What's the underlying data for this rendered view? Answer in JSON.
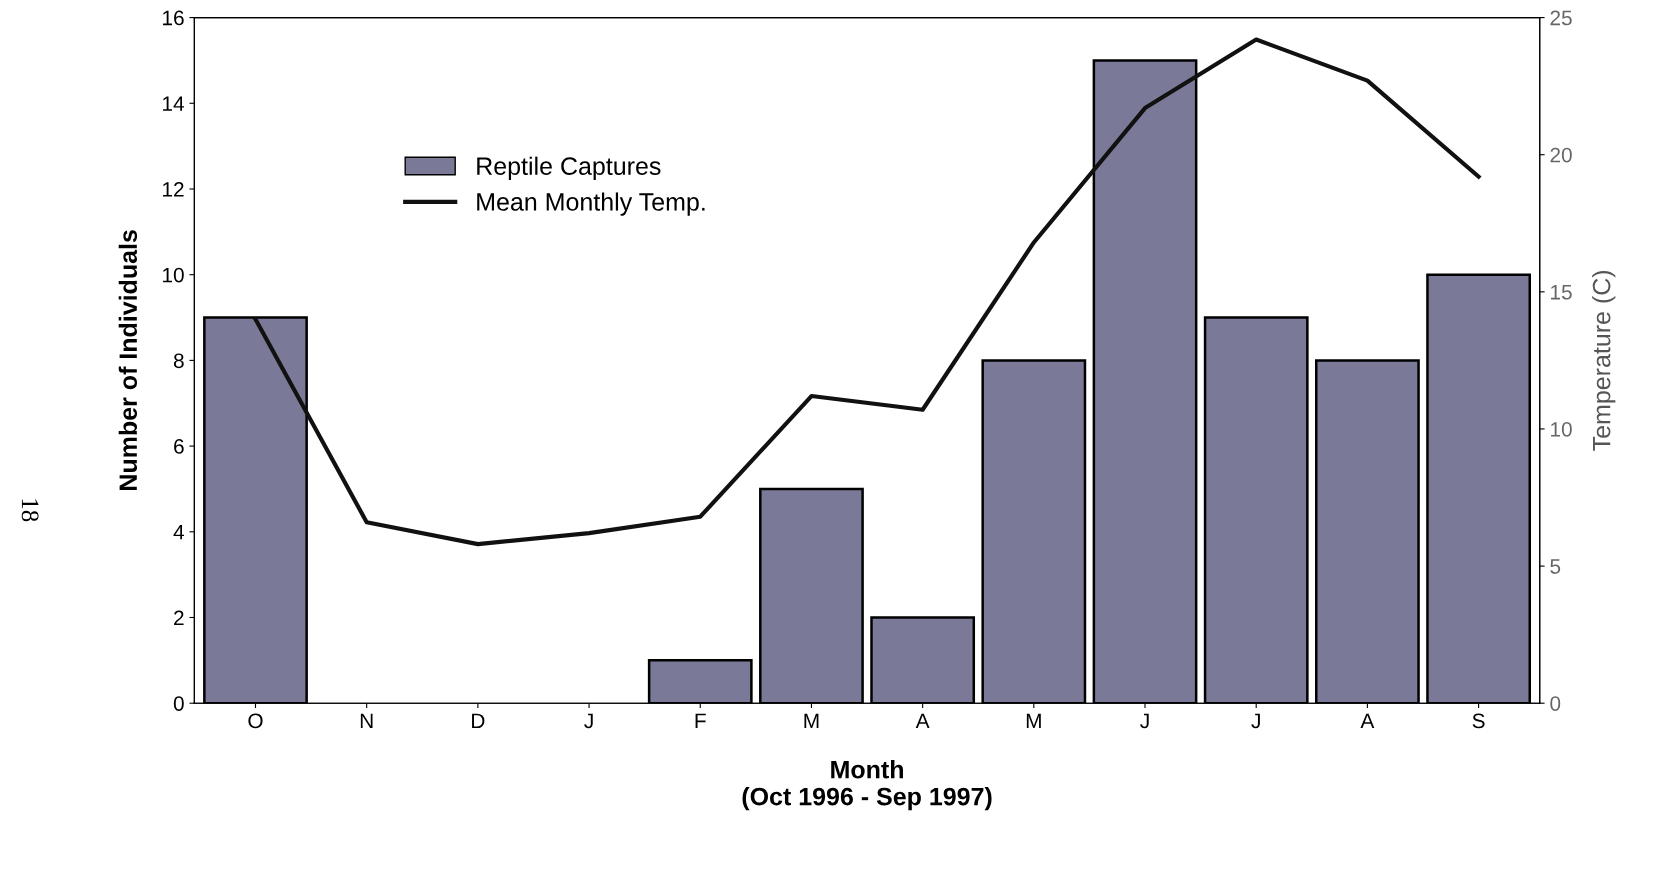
{
  "chart_data": {
    "type": "bar",
    "xlabel": "Month\n(Oct 1996 - Sep 1997)",
    "ylabel": "Number of Individuals",
    "y2label": "Temperature (C)",
    "categories": [
      "O",
      "N",
      "D",
      "J",
      "F",
      "M",
      "A",
      "M",
      "J",
      "J",
      "A",
      "S"
    ],
    "series": [
      {
        "name": "Reptile Captures",
        "color": "#7a7a98",
        "values": [
          9,
          0,
          0,
          0,
          1,
          5,
          2,
          8,
          15,
          9,
          8,
          10
        ]
      },
      {
        "name": "Mean Monthly Temp.",
        "type": "line",
        "axis": "y2",
        "color": "#111111",
        "values": [
          14.0,
          6.6,
          5.8,
          6.2,
          6.8,
          11.2,
          10.7,
          16.8,
          21.7,
          24.2,
          22.7,
          19.2
        ]
      }
    ],
    "ylim": [
      0,
      16
    ],
    "yticks": [
      0,
      2,
      4,
      6,
      8,
      10,
      12,
      14,
      16
    ],
    "y2lim": [
      0,
      25
    ],
    "y2ticks": [
      0,
      5,
      10,
      15,
      20,
      25
    ],
    "grid": false,
    "legend": "top left",
    "marker": "none",
    "line_style": "solid",
    "annotations": [
      "18"
    ]
  }
}
